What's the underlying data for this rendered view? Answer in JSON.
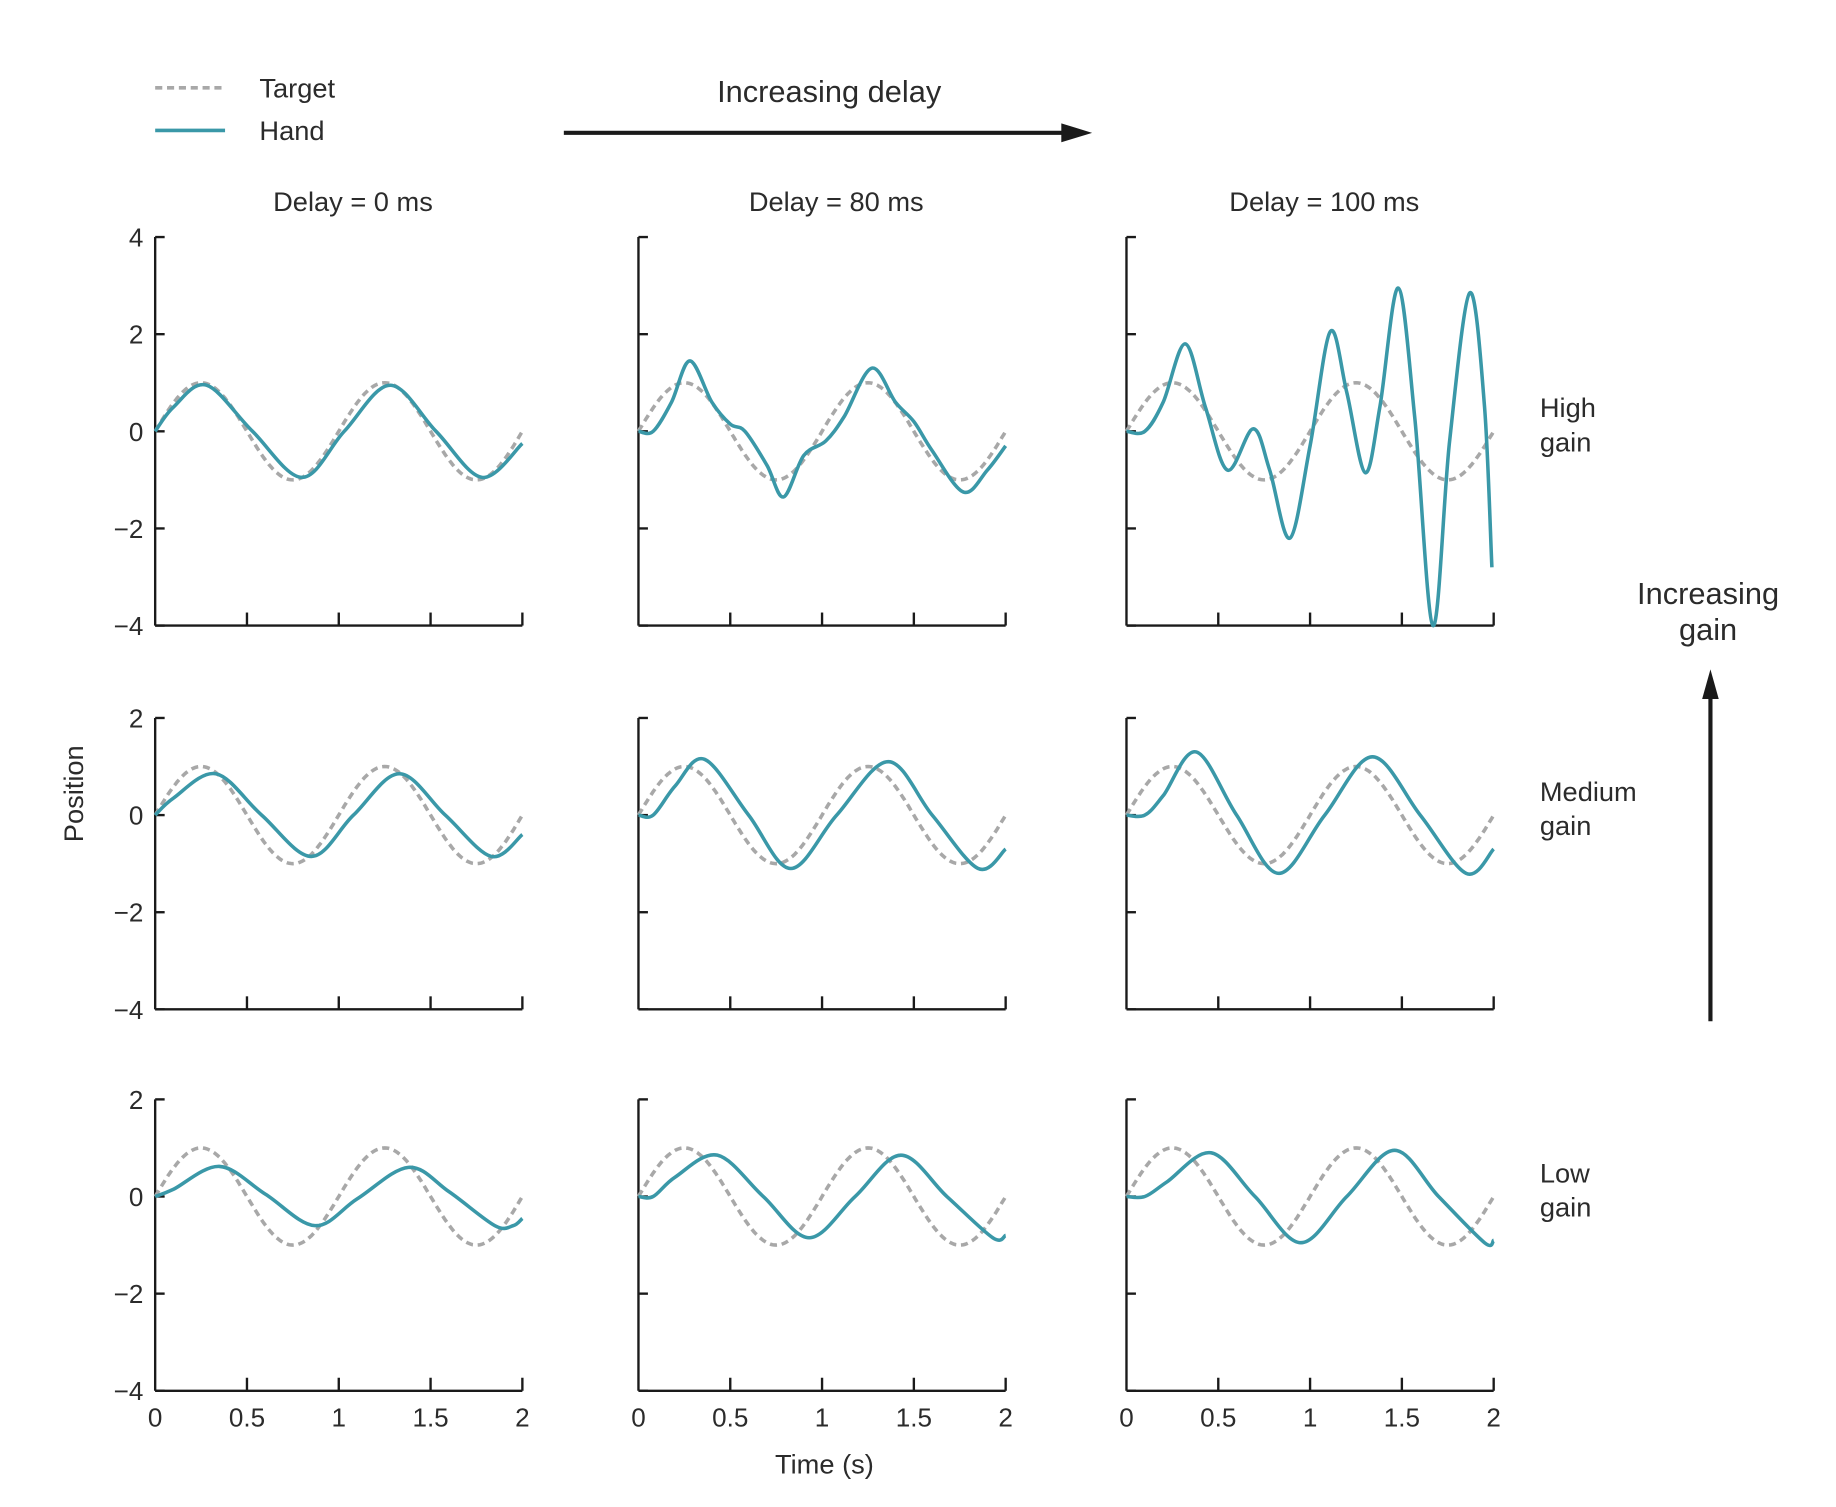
{
  "chart_data": {
    "type": "line",
    "legend": {
      "placement": "top-left",
      "entries": [
        {
          "name": "Target",
          "style": "dashed",
          "color": "#a8a8a8"
        },
        {
          "name": "Hand",
          "style": "solid",
          "color": "#3a98a8"
        }
      ]
    },
    "top_annotation": "Increasing delay",
    "side_annotation": [
      "Increasing",
      "gain"
    ],
    "xlabel": "Time (s)",
    "ylabel": "Position",
    "xlim": [
      0,
      2
    ],
    "xticks": [
      "0",
      "0.5",
      "1",
      "1.5",
      "2"
    ],
    "columns": [
      "Delay = 0 ms",
      "Delay = 80 ms",
      "Delay = 100 ms"
    ],
    "rows": [
      {
        "label": [
          "High",
          "gain"
        ],
        "ylim": [
          -4,
          4
        ],
        "yticks": [
          "4",
          "2",
          "0",
          "−2",
          "−4"
        ]
      },
      {
        "label": [
          "Medium",
          "gain"
        ],
        "ylim": [
          -4,
          2
        ],
        "yticks": [
          "2",
          "0",
          "−2",
          "−4"
        ]
      },
      {
        "label": [
          "Low",
          "gain"
        ],
        "ylim": [
          -4,
          2
        ],
        "yticks": [
          "2",
          "0",
          "−2",
          "−4"
        ]
      }
    ],
    "target": {
      "function": "sine",
      "amplitude": 1,
      "frequency_hz": 1
    },
    "hand": [
      [
        [
          [
            0,
            0
          ],
          [
            0.1,
            0.5
          ],
          [
            0.28,
            0.95
          ],
          [
            0.53,
            0
          ],
          [
            0.8,
            -0.95
          ],
          [
            1.03,
            0
          ],
          [
            1.28,
            0.95
          ],
          [
            1.53,
            0
          ],
          [
            1.78,
            -0.95
          ],
          [
            2,
            -0.25
          ]
        ],
        [
          [
            0,
            0
          ],
          [
            0.08,
            0
          ],
          [
            0.18,
            0.6
          ],
          [
            0.28,
            1.45
          ],
          [
            0.4,
            0.6
          ],
          [
            0.5,
            0.15
          ],
          [
            0.58,
            0
          ],
          [
            0.7,
            -0.7
          ],
          [
            0.79,
            -1.35
          ],
          [
            0.9,
            -0.5
          ],
          [
            1.02,
            -0.2
          ],
          [
            1.12,
            0.3
          ],
          [
            1.27,
            1.3
          ],
          [
            1.4,
            0.6
          ],
          [
            1.5,
            0.2
          ],
          [
            1.6,
            -0.4
          ],
          [
            1.77,
            -1.25
          ],
          [
            1.9,
            -0.8
          ],
          [
            2,
            -0.3
          ]
        ],
        [
          [
            0,
            0
          ],
          [
            0.1,
            0
          ],
          [
            0.2,
            0.6
          ],
          [
            0.32,
            1.8
          ],
          [
            0.43,
            0.5
          ],
          [
            0.55,
            -0.8
          ],
          [
            0.69,
            0.05
          ],
          [
            0.78,
            -0.8
          ],
          [
            0.89,
            -2.2
          ],
          [
            1.0,
            -0.3
          ],
          [
            1.11,
            2.05
          ],
          [
            1.2,
            0.8
          ],
          [
            1.3,
            -0.85
          ],
          [
            1.38,
            0.5
          ],
          [
            1.48,
            2.95
          ],
          [
            1.57,
            0.3
          ],
          [
            1.67,
            -4.0
          ],
          [
            1.76,
            -0.2
          ],
          [
            1.87,
            2.85
          ],
          [
            1.95,
            0.5
          ],
          [
            1.99,
            -2.8
          ]
        ]
      ],
      [
        [
          [
            0,
            0
          ],
          [
            0.1,
            0.35
          ],
          [
            0.33,
            0.85
          ],
          [
            0.58,
            0
          ],
          [
            0.85,
            -0.85
          ],
          [
            1.08,
            0
          ],
          [
            1.33,
            0.85
          ],
          [
            1.58,
            0
          ],
          [
            1.83,
            -0.85
          ],
          [
            2,
            -0.4
          ]
        ],
        [
          [
            0,
            0
          ],
          [
            0.08,
            0
          ],
          [
            0.2,
            0.6
          ],
          [
            0.36,
            1.15
          ],
          [
            0.6,
            0
          ],
          [
            0.83,
            -1.1
          ],
          [
            1.08,
            0
          ],
          [
            1.36,
            1.1
          ],
          [
            1.6,
            0
          ],
          [
            1.85,
            -1.1
          ],
          [
            2,
            -0.7
          ]
        ],
        [
          [
            0,
            0
          ],
          [
            0.1,
            0
          ],
          [
            0.2,
            0.4
          ],
          [
            0.38,
            1.3
          ],
          [
            0.6,
            0
          ],
          [
            0.83,
            -1.2
          ],
          [
            1.08,
            0
          ],
          [
            1.34,
            1.2
          ],
          [
            1.6,
            0
          ],
          [
            1.85,
            -1.2
          ],
          [
            2,
            -0.7
          ]
        ]
      ],
      [
        [
          [
            0,
            0
          ],
          [
            0.1,
            0.15
          ],
          [
            0.35,
            0.62
          ],
          [
            0.6,
            0.05
          ],
          [
            0.87,
            -0.6
          ],
          [
            1.1,
            -0.05
          ],
          [
            1.38,
            0.6
          ],
          [
            1.6,
            0.1
          ],
          [
            1.85,
            -0.6
          ],
          [
            1.95,
            -0.6
          ],
          [
            2,
            -0.45
          ]
        ],
        [
          [
            0,
            0
          ],
          [
            0.08,
            0
          ],
          [
            0.2,
            0.4
          ],
          [
            0.43,
            0.85
          ],
          [
            0.68,
            0
          ],
          [
            0.93,
            -0.85
          ],
          [
            1.18,
            0
          ],
          [
            1.43,
            0.85
          ],
          [
            1.68,
            0
          ],
          [
            1.93,
            -0.85
          ],
          [
            2,
            -0.8
          ]
        ],
        [
          [
            0,
            0
          ],
          [
            0.1,
            0
          ],
          [
            0.22,
            0.3
          ],
          [
            0.46,
            0.9
          ],
          [
            0.7,
            0
          ],
          [
            0.95,
            -0.95
          ],
          [
            1.2,
            0
          ],
          [
            1.46,
            0.95
          ],
          [
            1.7,
            0
          ],
          [
            1.95,
            -0.95
          ],
          [
            2,
            -0.9
          ]
        ]
      ]
    ]
  }
}
